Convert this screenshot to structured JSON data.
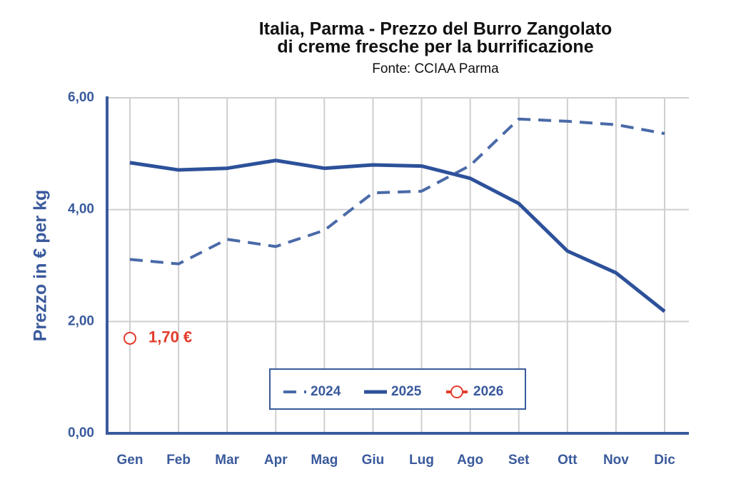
{
  "chart_data": {
    "type": "line",
    "title": "Italia, Parma - Prezzo del Burro Zangolato",
    "subtitle": "di creme fresche per la burrificazione",
    "source": "Fonte: CCIAA Parma",
    "y_label": "Prezzo in € per kg",
    "categories": [
      "Gen",
      "Feb",
      "Mar",
      "Apr",
      "Mag",
      "Giu",
      "Lug",
      "Ago",
      "Set",
      "Ott",
      "Nov",
      "Dic"
    ],
    "series": [
      {
        "name": "2024",
        "color": "#4a6aa8",
        "line_style": "dashed",
        "values": [
          3.11,
          3.03,
          3.47,
          3.34,
          3.63,
          4.3,
          4.33,
          4.79,
          5.62,
          5.58,
          5.52,
          5.36
        ]
      },
      {
        "name": "2025",
        "color": "#2d519a",
        "line_style": "solid",
        "values": [
          4.84,
          4.71,
          4.74,
          4.88,
          4.74,
          4.8,
          4.78,
          4.56,
          4.11,
          3.26,
          2.87,
          2.18
        ]
      },
      {
        "name": "2026",
        "color": "#e33b2b",
        "line_style": "none",
        "marker": "circle",
        "values": [
          1.7,
          null,
          null,
          null,
          null,
          null,
          null,
          null,
          null,
          null,
          null,
          null
        ],
        "value_labels": [
          "1,70 €",
          null,
          null,
          null,
          null,
          null,
          null,
          null,
          null,
          null,
          null,
          null
        ]
      }
    ],
    "ylim": [
      0,
      6
    ],
    "yticks": [
      {
        "value": 0,
        "label": "0,00"
      },
      {
        "value": 2,
        "label": "2,00"
      },
      {
        "value": 4,
        "label": "4,00"
      },
      {
        "value": 6,
        "label": "6,00"
      }
    ],
    "grid": true,
    "legend": "bottom"
  }
}
